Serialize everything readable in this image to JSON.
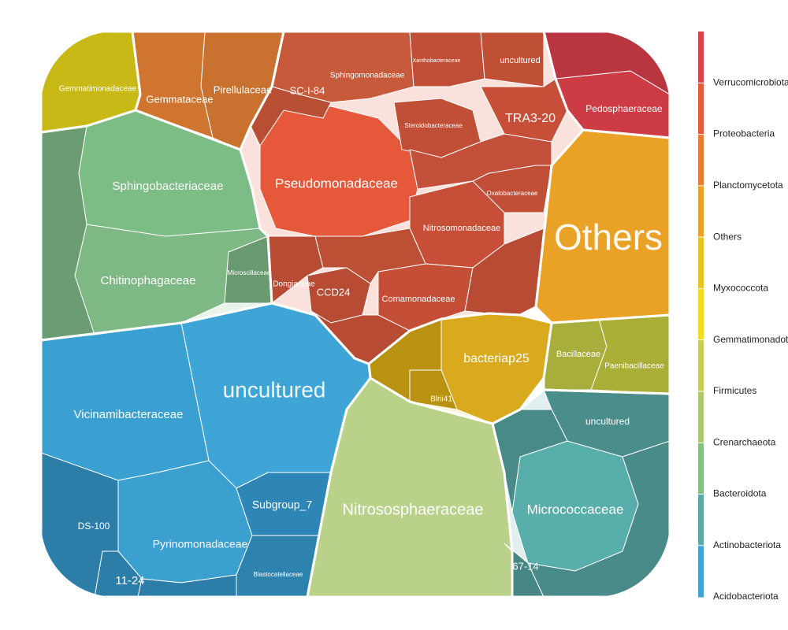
{
  "chart_data": {
    "type": "voronoi-treemap",
    "title": "",
    "legend": {
      "position": "right",
      "entries": [
        {
          "name": "Verrucomicrobiota",
          "color": "#d8424a"
        },
        {
          "name": "Proteobacteria",
          "color": "#e45b3a"
        },
        {
          "name": "Planctomycetota",
          "color": "#e47f2f"
        },
        {
          "name": "Others",
          "color": "#eaa126"
        },
        {
          "name": "Myxococcota",
          "color": "#e8c21f"
        },
        {
          "name": "Gemmatimonadota",
          "color": "#f0de1e"
        },
        {
          "name": "Firmicutes",
          "color": "#c7cc56"
        },
        {
          "name": "Crenarchaeota",
          "color": "#aec86e"
        },
        {
          "name": "Bacteroidota",
          "color": "#86bf84"
        },
        {
          "name": "Actinobacteriota",
          "color": "#58aaa7"
        },
        {
          "name": "Acidobacteriota",
          "color": "#3fa3d4"
        }
      ]
    },
    "cells": [
      {
        "phylum": "Others",
        "label": "Others",
        "weight": 10
      },
      {
        "phylum": "Acidobacteriota",
        "label": "uncultured",
        "weight": 9
      },
      {
        "phylum": "Acidobacteriota",
        "label": "Vicinamibacteraceae",
        "weight": 7
      },
      {
        "phylum": "Acidobacteriota",
        "label": "Pyrinomonadaceae",
        "weight": 4
      },
      {
        "phylum": "Acidobacteriota",
        "label": "Subgroup_7",
        "weight": 2
      },
      {
        "phylum": "Acidobacteriota",
        "label": "11-24",
        "weight": 1
      },
      {
        "phylum": "Acidobacteriota",
        "label": "DS-100",
        "weight": 1
      },
      {
        "phylum": "Acidobacteriota",
        "label": "Blastocatellaceae",
        "weight": 1
      },
      {
        "phylum": "Crenarchaeota",
        "label": "Nitrososphaeraceae",
        "weight": 8
      },
      {
        "phylum": "Proteobacteria",
        "label": "Pseudomonadaceae",
        "weight": 7
      },
      {
        "phylum": "Proteobacteria",
        "label": "Nitrosomonadaceae",
        "weight": 3
      },
      {
        "phylum": "Proteobacteria",
        "label": "Sphingomonadaceae",
        "weight": 2
      },
      {
        "phylum": "Proteobacteria",
        "label": "Comamonadaceae",
        "weight": 2
      },
      {
        "phylum": "Proteobacteria",
        "label": "TRA3-20",
        "weight": 1
      },
      {
        "phylum": "Proteobacteria",
        "label": "SC-I-84",
        "weight": 1
      },
      {
        "phylum": "Proteobacteria",
        "label": "CCD24",
        "weight": 1
      },
      {
        "phylum": "Proteobacteria",
        "label": "Oxalobacteraceae",
        "weight": 1
      },
      {
        "phylum": "Proteobacteria",
        "label": "Steroidobacteraceae",
        "weight": 1
      },
      {
        "phylum": "Proteobacteria",
        "label": "Xanthobacteraceae",
        "weight": 1
      },
      {
        "phylum": "Proteobacteria",
        "label": "Dongiaceae",
        "weight": 1
      },
      {
        "phylum": "Proteobacteria",
        "label": "uncultured",
        "weight": 1
      },
      {
        "phylum": "Bacteroidota",
        "label": "Sphingobacteriaceae",
        "weight": 5
      },
      {
        "phylum": "Bacteroidota",
        "label": "Chitinophagaceae",
        "weight": 5
      },
      {
        "phylum": "Bacteroidota",
        "label": "Microscillaceae",
        "weight": 1
      },
      {
        "phylum": "Actinobacteriota",
        "label": "Micrococcaceae",
        "weight": 5
      },
      {
        "phylum": "Actinobacteriota",
        "label": "uncultured",
        "weight": 1
      },
      {
        "phylum": "Actinobacteriota",
        "label": "67-14",
        "weight": 1
      },
      {
        "phylum": "Planctomycetota",
        "label": "Pirellulaceae",
        "weight": 2
      },
      {
        "phylum": "Planctomycetota",
        "label": "Gemmataceae",
        "weight": 2
      },
      {
        "phylum": "Verrucomicrobiota",
        "label": "Pedosphaeraceae",
        "weight": 3
      },
      {
        "phylum": "Myxococcota",
        "label": "bacteriap25",
        "weight": 3
      },
      {
        "phylum": "Myxococcota",
        "label": "Blrii41",
        "weight": 1
      },
      {
        "phylum": "Firmicutes",
        "label": "Bacillaceae",
        "weight": 1
      },
      {
        "phylum": "Firmicutes",
        "label": "Paenibacillaceae",
        "weight": 2
      },
      {
        "phylum": "Gemmatimonadota",
        "label": "Gemmatimonadaceae",
        "weight": 2
      }
    ]
  }
}
